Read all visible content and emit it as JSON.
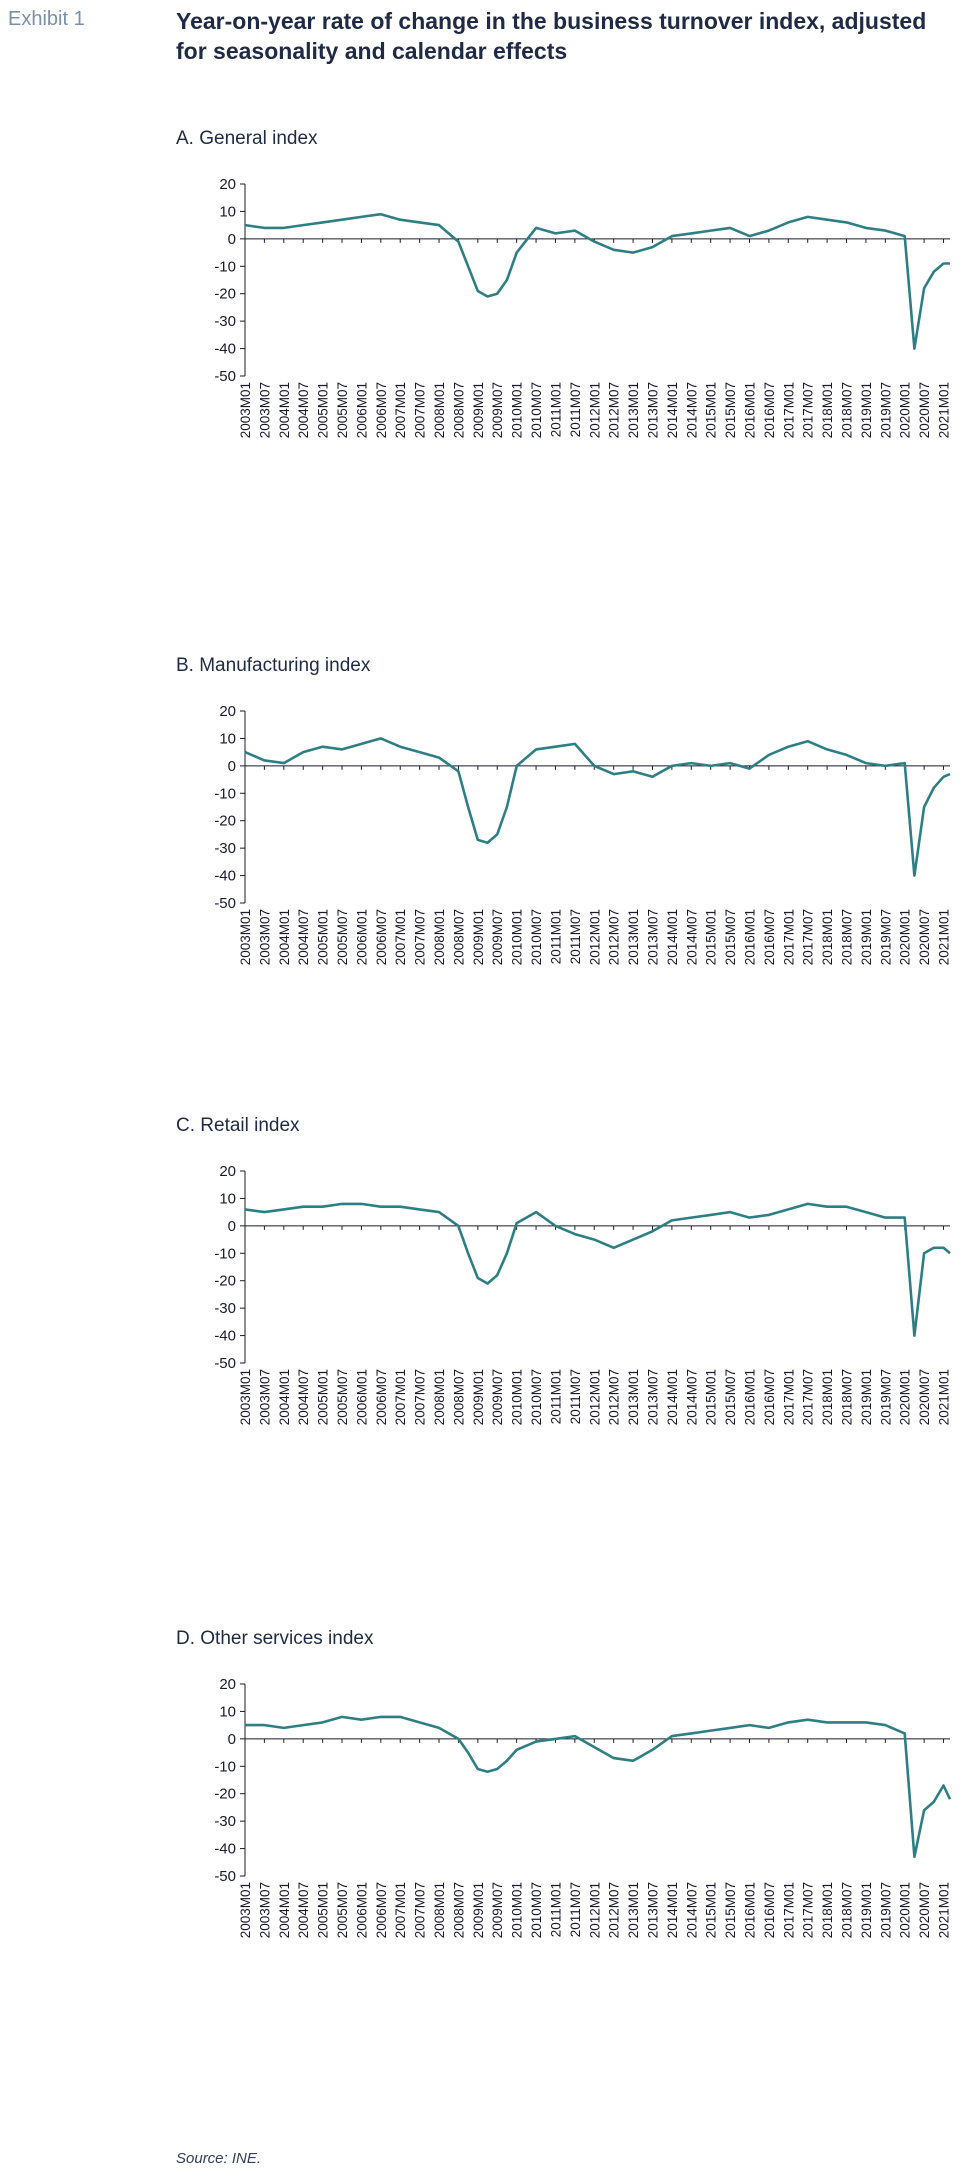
{
  "header": {
    "exhibit": "Exhibit 1",
    "title": "Year-on-year rate of change in the business turnover index, adjusted for seasonality and calendar effects"
  },
  "source": "Source: INE.",
  "style": {
    "line_color": "#2e7f84",
    "axis_color": "#1a1a2e"
  },
  "chart_data": [
    {
      "type": "line",
      "title": "A. General index",
      "ylim": [
        -50,
        20
      ],
      "yticks": [
        20,
        10,
        0,
        -10,
        -20,
        -30,
        -40,
        -50
      ],
      "xtick_labels": [
        "2003M01",
        "2003M07",
        "2004M01",
        "2004M07",
        "2005M01",
        "2005M07",
        "2006M01",
        "2006M07",
        "2007M01",
        "2007M07",
        "2008M01",
        "2008M07",
        "2009M01",
        "2009M07",
        "2010M01",
        "2010M07",
        "2011M01",
        "2011M07",
        "2012M01",
        "2012M07",
        "2013M01",
        "2013M07",
        "2014M01",
        "2014M07",
        "2015M01",
        "2015M07",
        "2016M01",
        "2016M07",
        "2017M01",
        "2017M07",
        "2018M01",
        "2018M07",
        "2019M01",
        "2019M07",
        "2020M01",
        "2020M07",
        "2021M01"
      ],
      "points": [
        [
          "2003M01",
          5
        ],
        [
          "2003M07",
          4
        ],
        [
          "2004M01",
          4
        ],
        [
          "2004M07",
          5
        ],
        [
          "2005M01",
          6
        ],
        [
          "2005M07",
          7
        ],
        [
          "2006M01",
          8
        ],
        [
          "2006M07",
          9
        ],
        [
          "2007M01",
          7
        ],
        [
          "2007M07",
          6
        ],
        [
          "2008M01",
          5
        ],
        [
          "2008M07",
          -1
        ],
        [
          "2008M10",
          -10
        ],
        [
          "2009M01",
          -19
        ],
        [
          "2009M04",
          -21
        ],
        [
          "2009M07",
          -20
        ],
        [
          "2009M10",
          -15
        ],
        [
          "2010M01",
          -5
        ],
        [
          "2010M07",
          4
        ],
        [
          "2011M01",
          2
        ],
        [
          "2011M07",
          3
        ],
        [
          "2012M01",
          -1
        ],
        [
          "2012M07",
          -4
        ],
        [
          "2013M01",
          -5
        ],
        [
          "2013M07",
          -3
        ],
        [
          "2014M01",
          1
        ],
        [
          "2014M07",
          2
        ],
        [
          "2015M01",
          3
        ],
        [
          "2015M07",
          4
        ],
        [
          "2016M01",
          1
        ],
        [
          "2016M07",
          3
        ],
        [
          "2017M01",
          6
        ],
        [
          "2017M07",
          8
        ],
        [
          "2018M01",
          7
        ],
        [
          "2018M07",
          6
        ],
        [
          "2019M01",
          4
        ],
        [
          "2019M07",
          3
        ],
        [
          "2020M01",
          1
        ],
        [
          "2020M04",
          -40
        ],
        [
          "2020M07",
          -18
        ],
        [
          "2020M10",
          -12
        ],
        [
          "2021M01",
          -9
        ],
        [
          "2021M03",
          -9
        ]
      ]
    },
    {
      "type": "line",
      "title": "B. Manufacturing index",
      "ylim": [
        -50,
        20
      ],
      "yticks": [
        20,
        10,
        0,
        -10,
        -20,
        -30,
        -40,
        -50
      ],
      "xtick_labels": [
        "2003M01",
        "2003M07",
        "2004M01",
        "2004M07",
        "2005M01",
        "2005M07",
        "2006M01",
        "2006M07",
        "2007M01",
        "2007M07",
        "2008M01",
        "2008M07",
        "2009M01",
        "2009M07",
        "2010M01",
        "2010M07",
        "2011M01",
        "2011M07",
        "2012M01",
        "2012M07",
        "2013M01",
        "2013M07",
        "2014M01",
        "2014M07",
        "2015M01",
        "2015M07",
        "2016M01",
        "2016M07",
        "2017M01",
        "2017M07",
        "2018M01",
        "2018M07",
        "2019M01",
        "2019M07",
        "2020M01",
        "2020M07",
        "2021M01"
      ],
      "points": [
        [
          "2003M01",
          5
        ],
        [
          "2003M07",
          2
        ],
        [
          "2004M01",
          1
        ],
        [
          "2004M07",
          5
        ],
        [
          "2005M01",
          7
        ],
        [
          "2005M07",
          6
        ],
        [
          "2006M01",
          8
        ],
        [
          "2006M07",
          10
        ],
        [
          "2007M01",
          7
        ],
        [
          "2007M07",
          5
        ],
        [
          "2008M01",
          3
        ],
        [
          "2008M07",
          -2
        ],
        [
          "2008M10",
          -15
        ],
        [
          "2009M01",
          -27
        ],
        [
          "2009M04",
          -28
        ],
        [
          "2009M07",
          -25
        ],
        [
          "2009M10",
          -15
        ],
        [
          "2010M01",
          0
        ],
        [
          "2010M07",
          6
        ],
        [
          "2011M01",
          7
        ],
        [
          "2011M07",
          8
        ],
        [
          "2012M01",
          0
        ],
        [
          "2012M07",
          -3
        ],
        [
          "2013M01",
          -2
        ],
        [
          "2013M07",
          -4
        ],
        [
          "2014M01",
          0
        ],
        [
          "2014M07",
          1
        ],
        [
          "2015M01",
          0
        ],
        [
          "2015M07",
          1
        ],
        [
          "2016M01",
          -1
        ],
        [
          "2016M07",
          4
        ],
        [
          "2017M01",
          7
        ],
        [
          "2017M07",
          9
        ],
        [
          "2018M01",
          6
        ],
        [
          "2018M07",
          4
        ],
        [
          "2019M01",
          1
        ],
        [
          "2019M07",
          0
        ],
        [
          "2020M01",
          1
        ],
        [
          "2020M04",
          -40
        ],
        [
          "2020M07",
          -15
        ],
        [
          "2020M10",
          -8
        ],
        [
          "2021M01",
          -4
        ],
        [
          "2021M03",
          -3
        ]
      ]
    },
    {
      "type": "line",
      "title": "C. Retail index",
      "ylim": [
        -50,
        20
      ],
      "yticks": [
        20,
        10,
        0,
        -10,
        -20,
        -30,
        -40,
        -50
      ],
      "xtick_labels": [
        "2003M01",
        "2003M07",
        "2004M01",
        "2004M07",
        "2005M01",
        "2005M07",
        "2006M01",
        "2006M07",
        "2007M01",
        "2007M07",
        "2008M01",
        "2008M07",
        "2009M01",
        "2009M07",
        "2010M01",
        "2010M07",
        "2011M01",
        "2011M07",
        "2012M01",
        "2012M07",
        "2013M01",
        "2013M07",
        "2014M01",
        "2014M07",
        "2015M01",
        "2015M07",
        "2016M01",
        "2016M07",
        "2017M01",
        "2017M07",
        "2018M01",
        "2018M07",
        "2019M01",
        "2019M07",
        "2020M01",
        "2020M07",
        "2021M01"
      ],
      "points": [
        [
          "2003M01",
          6
        ],
        [
          "2003M07",
          5
        ],
        [
          "2004M01",
          6
        ],
        [
          "2004M07",
          7
        ],
        [
          "2005M01",
          7
        ],
        [
          "2005M07",
          8
        ],
        [
          "2006M01",
          8
        ],
        [
          "2006M07",
          7
        ],
        [
          "2007M01",
          7
        ],
        [
          "2007M07",
          6
        ],
        [
          "2008M01",
          5
        ],
        [
          "2008M07",
          0
        ],
        [
          "2008M10",
          -10
        ],
        [
          "2009M01",
          -19
        ],
        [
          "2009M04",
          -21
        ],
        [
          "2009M07",
          -18
        ],
        [
          "2009M10",
          -10
        ],
        [
          "2010M01",
          1
        ],
        [
          "2010M07",
          5
        ],
        [
          "2011M01",
          0
        ],
        [
          "2011M07",
          -3
        ],
        [
          "2012M01",
          -5
        ],
        [
          "2012M07",
          -8
        ],
        [
          "2013M01",
          -5
        ],
        [
          "2013M07",
          -2
        ],
        [
          "2014M01",
          2
        ],
        [
          "2014M07",
          3
        ],
        [
          "2015M01",
          4
        ],
        [
          "2015M07",
          5
        ],
        [
          "2016M01",
          3
        ],
        [
          "2016M07",
          4
        ],
        [
          "2017M01",
          6
        ],
        [
          "2017M07",
          8
        ],
        [
          "2018M01",
          7
        ],
        [
          "2018M07",
          7
        ],
        [
          "2019M01",
          5
        ],
        [
          "2019M07",
          3
        ],
        [
          "2020M01",
          3
        ],
        [
          "2020M04",
          -40
        ],
        [
          "2020M07",
          -10
        ],
        [
          "2020M10",
          -8
        ],
        [
          "2021M01",
          -8
        ],
        [
          "2021M03",
          -10
        ]
      ]
    },
    {
      "type": "line",
      "title": "D. Other services index",
      "ylim": [
        -50,
        20
      ],
      "yticks": [
        20,
        10,
        0,
        -10,
        -20,
        -30,
        -40,
        -50
      ],
      "xtick_labels": [
        "2003M01",
        "2003M07",
        "2004M01",
        "2004M07",
        "2005M01",
        "2005M07",
        "2006M01",
        "2006M07",
        "2007M01",
        "2007M07",
        "2008M01",
        "2008M07",
        "2009M01",
        "2009M07",
        "2010M01",
        "2010M07",
        "2011M01",
        "2011M07",
        "2012M01",
        "2012M07",
        "2013M01",
        "2013M07",
        "2014M01",
        "2014M07",
        "2015M01",
        "2015M07",
        "2016M01",
        "2016M07",
        "2017M01",
        "2017M07",
        "2018M01",
        "2018M07",
        "2019M01",
        "2019M07",
        "2020M01",
        "2020M07",
        "2021M01"
      ],
      "points": [
        [
          "2003M01",
          5
        ],
        [
          "2003M07",
          5
        ],
        [
          "2004M01",
          4
        ],
        [
          "2004M07",
          5
        ],
        [
          "2005M01",
          6
        ],
        [
          "2005M07",
          8
        ],
        [
          "2006M01",
          7
        ],
        [
          "2006M07",
          8
        ],
        [
          "2007M01",
          8
        ],
        [
          "2007M07",
          6
        ],
        [
          "2008M01",
          4
        ],
        [
          "2008M07",
          0
        ],
        [
          "2008M10",
          -5
        ],
        [
          "2009M01",
          -11
        ],
        [
          "2009M04",
          -12
        ],
        [
          "2009M07",
          -11
        ],
        [
          "2009M10",
          -8
        ],
        [
          "2010M01",
          -4
        ],
        [
          "2010M07",
          -1
        ],
        [
          "2011M01",
          0
        ],
        [
          "2011M07",
          1
        ],
        [
          "2012M01",
          -3
        ],
        [
          "2012M07",
          -7
        ],
        [
          "2013M01",
          -8
        ],
        [
          "2013M07",
          -4
        ],
        [
          "2014M01",
          1
        ],
        [
          "2014M07",
          2
        ],
        [
          "2015M01",
          3
        ],
        [
          "2015M07",
          4
        ],
        [
          "2016M01",
          5
        ],
        [
          "2016M07",
          4
        ],
        [
          "2017M01",
          6
        ],
        [
          "2017M07",
          7
        ],
        [
          "2018M01",
          6
        ],
        [
          "2018M07",
          6
        ],
        [
          "2019M01",
          6
        ],
        [
          "2019M07",
          5
        ],
        [
          "2020M01",
          2
        ],
        [
          "2020M04",
          -43
        ],
        [
          "2020M07",
          -26
        ],
        [
          "2020M10",
          -23
        ],
        [
          "2021M01",
          -17
        ],
        [
          "2021M03",
          -22
        ]
      ]
    }
  ]
}
